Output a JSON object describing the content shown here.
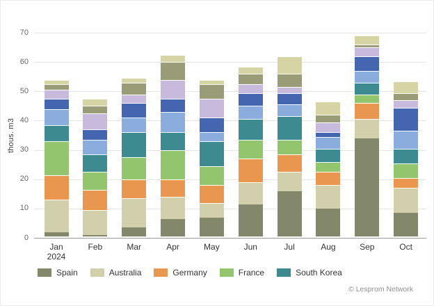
{
  "chart_data": {
    "type": "bar",
    "stacked": true,
    "title": "",
    "ylabel": "thous. m3",
    "ylim": [
      0,
      70
    ],
    "yticks": [
      0,
      10,
      20,
      30,
      40,
      50,
      60,
      70
    ],
    "grid": true,
    "legend_position": "bottom",
    "categories": [
      "Jan",
      "Feb",
      "Mar",
      "Apr",
      "May",
      "Jun",
      "Jul",
      "Aug",
      "Sep",
      "Oct"
    ],
    "x_first_sublabel": "2024",
    "series": [
      {
        "name": "Spain",
        "color": "#84886a",
        "in_legend": true,
        "values": [
          1.5,
          0.5,
          3,
          6,
          6.5,
          11,
          15.5,
          9.5,
          33.5,
          8
        ]
      },
      {
        "name": "Australia",
        "color": "#d2cfac",
        "in_legend": true,
        "values": [
          11,
          8.5,
          10,
          7.5,
          5,
          7.5,
          6.5,
          8,
          6.5,
          8.5
        ]
      },
      {
        "name": "Germany",
        "color": "#e9964e",
        "in_legend": true,
        "values": [
          8.5,
          7,
          6.5,
          6,
          6,
          8,
          6,
          4.5,
          5.5,
          3.5
        ]
      },
      {
        "name": "France",
        "color": "#93c46e",
        "in_legend": true,
        "values": [
          11.5,
          6,
          7.5,
          10,
          6.5,
          6.5,
          5,
          3.5,
          3,
          5
        ]
      },
      {
        "name": "South Korea",
        "color": "#3d8a90",
        "in_legend": true,
        "values": [
          5.5,
          6,
          8.5,
          6,
          8.5,
          7,
          8,
          4.5,
          4,
          5
        ]
      },
      {
        "name": "",
        "color": "#8badde",
        "in_legend": false,
        "values": [
          5.5,
          5,
          5,
          7,
          3,
          4.5,
          4,
          4,
          4,
          6
        ]
      },
      {
        "name": "",
        "color": "#4465af",
        "in_legend": false,
        "values": [
          3.5,
          3.5,
          5,
          4.5,
          5,
          4.5,
          4,
          1.5,
          5,
          8
        ]
      },
      {
        "name": "",
        "color": "#c7badd",
        "in_legend": false,
        "values": [
          3,
          5.5,
          3,
          6.5,
          6.5,
          3,
          2,
          3.5,
          3,
          2.5
        ]
      },
      {
        "name": "",
        "color": "#999c76",
        "in_legend": false,
        "values": [
          2,
          2.5,
          4,
          6,
          5,
          3.5,
          4.5,
          2.5,
          1,
          2.5
        ]
      },
      {
        "name": "",
        "color": "#d6d3a4",
        "in_legend": false,
        "values": [
          1.5,
          2.5,
          1.5,
          2.5,
          1.5,
          2.5,
          6,
          4.5,
          3,
          4
        ]
      }
    ],
    "credit": "© Lesprom Network"
  }
}
